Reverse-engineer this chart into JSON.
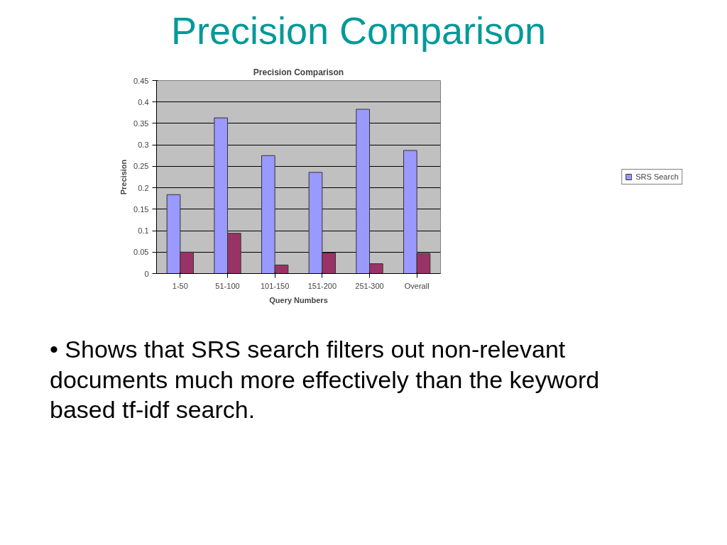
{
  "chart_data": {
    "type": "bar",
    "title": "Precision Comparison",
    "xlabel": "Query Numbers",
    "ylabel": "Precision",
    "categories": [
      "1-50",
      "51-100",
      "101-150",
      "151-200",
      "251-300",
      "Overall"
    ],
    "series": [
      {
        "name": "SRS Search",
        "color": "#9999ff",
        "values": [
          0.184,
          0.363,
          0.275,
          0.236,
          0.383,
          0.287
        ]
      },
      {
        "color": "#993366",
        "values": [
          0.05,
          0.094,
          0.02,
          0.048,
          0.023,
          0.047
        ]
      }
    ],
    "ylim": [
      0,
      0.45
    ],
    "yticks": [
      0,
      0.05,
      0.1,
      0.15,
      0.2,
      0.25,
      0.3,
      0.35,
      0.4,
      0.45
    ],
    "grid": "y",
    "legend": "right",
    "annotations": [
      "Precision Comparison",
      "• Shows that SRS search filters out non-relevant documents much more effectively than the keyword based tf-idf search."
    ]
  }
}
